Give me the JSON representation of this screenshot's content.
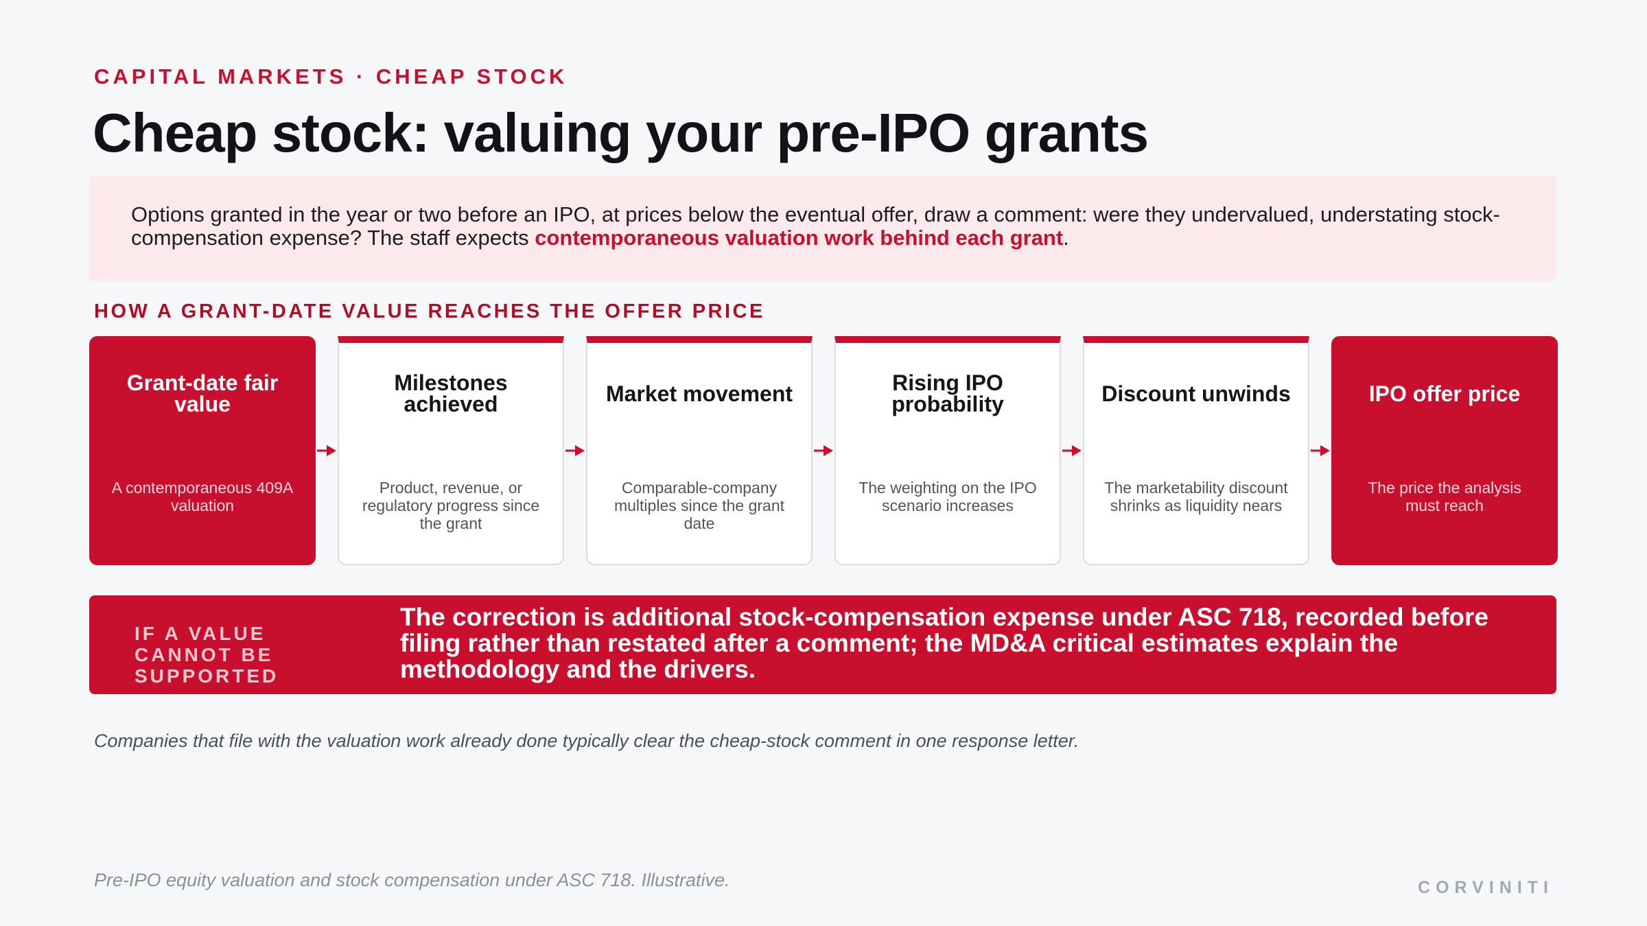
{
  "eyebrow": "CAPITAL MARKETS · CHEAP STOCK",
  "title": "Cheap stock: valuing your pre-IPO grants",
  "intro": {
    "text": "Options granted in the year or two before an IPO, at prices below the eventual offer, draw a comment: were they undervalued, understating stock-compensation expense? The staff expects ",
    "highlight": "contemporaneous valuation work behind each grant",
    "end": "."
  },
  "section_label": "HOW A GRANT-DATE VALUE REACHES THE OFFER PRICE",
  "steps": [
    {
      "title": "Grant-date fair value",
      "desc": "A contemporaneous 409A valuation",
      "style": "red"
    },
    {
      "title": "Milestones achieved",
      "desc": "Product, revenue, or regulatory progress since the grant",
      "style": "white"
    },
    {
      "title": "Market movement",
      "desc": "Comparable-company multiples since the grant date",
      "style": "white"
    },
    {
      "title": "Rising IPO probability",
      "desc": "The weighting on the IPO scenario increases",
      "style": "white"
    },
    {
      "title": "Discount unwinds",
      "desc": "The marketability discount shrinks as liquidity nears",
      "style": "white"
    },
    {
      "title": "IPO offer price",
      "desc": "The price the analysis must reach",
      "style": "red"
    }
  ],
  "banner": {
    "label": "IF A VALUE CANNOT BE SUPPORTED",
    "text": "The correction is additional stock-compensation expense under ASC 718, recorded before filing rather than restated after a comment; the MD&A critical estimates explain the methodology and the drivers."
  },
  "note": "Companies that file with the valuation work already done typically clear the cheap-stock comment in one response letter.",
  "footer": "Pre-IPO equity valuation and stock compensation under ASC 718. Illustrative.",
  "brand": "CORVINITI",
  "colors": {
    "accent": "#c8102e",
    "tint": "#fbe9ec",
    "background": "#f6f7f9"
  }
}
